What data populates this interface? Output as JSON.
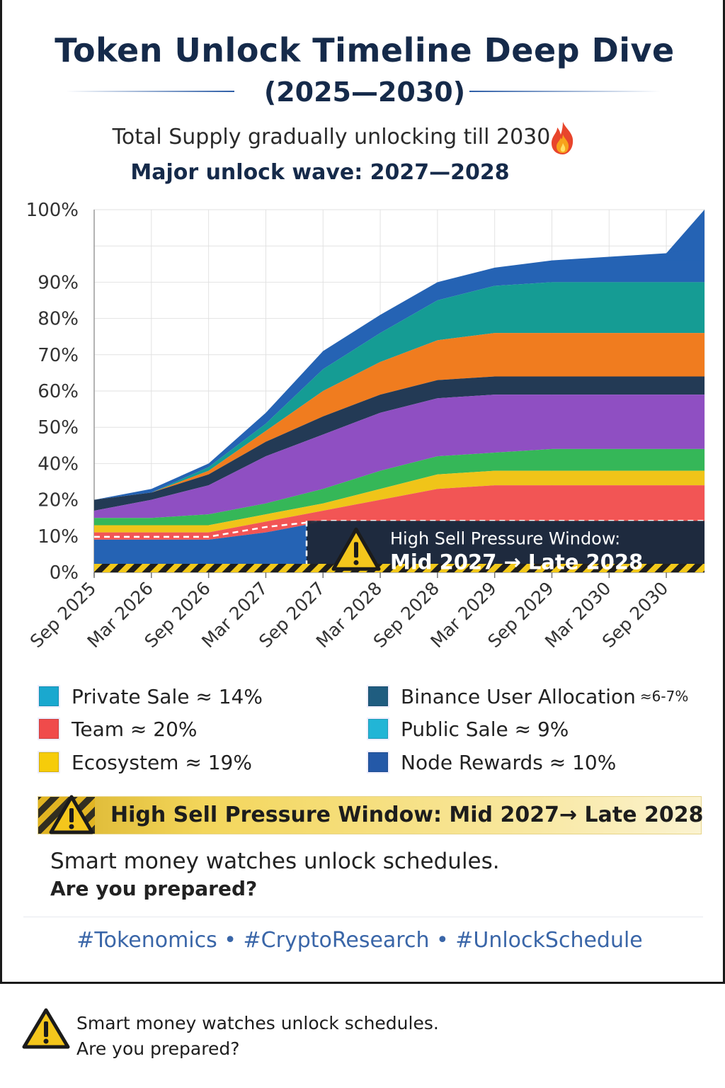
{
  "header": {
    "title": "Token Unlock Timeline Deep Dive",
    "years": "(2025—2030)",
    "subtitle": "Total Supply gradually unlocking till 2030",
    "subtitle_icon": "fire-icon",
    "wave": "Major unlock wave: 2027—2028"
  },
  "chart_data": {
    "type": "area",
    "stacked": true,
    "x": [
      "Sep 2025",
      "Mar 2026",
      "Sep 2026",
      "Mar 2027",
      "Sep 2027",
      "Mar 2028",
      "Sep 2028",
      "Mar 2029",
      "Sep 2029",
      "Mar 2030",
      "Sep 2030"
    ],
    "x_ticks": [
      "Sep 2025",
      "Mar 2026",
      "Sep 2026",
      "Mar 2027",
      "Sep 2027",
      "Mar 2028",
      "Sep 2028",
      "Mar 2029",
      "Sep 2029",
      "Mar 2030",
      "Sep 2030"
    ],
    "y_ticks": [
      "0%",
      "10%",
      "20%",
      "40%",
      "50%",
      "60%",
      "70%",
      "80%",
      "90%",
      "100%"
    ],
    "ylim": [
      0,
      100
    ],
    "grid": true,
    "layer_tops_sampled": {
      "t": [
        "Sep 2025",
        "Mar 2026",
        "Sep 2026",
        "Mar 2027",
        "Sep 2027",
        "Mar 2028",
        "Sep 2028",
        "Mar 2029",
        "Sep 2029",
        "Mar 2030",
        "Sep 2030",
        "Jan 2031"
      ],
      "layers": [
        {
          "color": "#2563b4",
          "tops": [
            9,
            9,
            9,
            11,
            14,
            14,
            14,
            14,
            14,
            14,
            14,
            14
          ]
        },
        {
          "color": "#f25555",
          "tops": [
            11,
            11,
            11,
            14,
            17,
            20,
            23,
            24,
            24,
            24,
            24,
            24
          ]
        },
        {
          "color": "#f0c419",
          "tops": [
            13,
            13,
            13,
            16,
            19,
            23,
            27,
            28,
            28,
            28,
            28,
            28
          ]
        },
        {
          "color": "#35b758",
          "tops": [
            15,
            15,
            16,
            19,
            23,
            28,
            32,
            33,
            34,
            34,
            34,
            34
          ]
        },
        {
          "color": "#8f4fc2",
          "tops": [
            17,
            20,
            24,
            32,
            38,
            44,
            48,
            49,
            49,
            49,
            49,
            49
          ]
        },
        {
          "color": "#233a55",
          "tops": [
            20,
            22,
            27,
            36,
            43,
            49,
            53,
            54,
            54,
            54,
            54,
            54
          ]
        },
        {
          "color": "#f07c1f",
          "tops": [
            20,
            22,
            28,
            39,
            50,
            58,
            64,
            66,
            66,
            66,
            66,
            66
          ]
        },
        {
          "color": "#159c94",
          "tops": [
            20,
            22,
            29,
            41,
            56,
            66,
            75,
            79,
            80,
            80,
            80,
            80
          ]
        },
        {
          "color": "#2563b4",
          "tops": [
            20,
            23,
            30,
            44,
            61,
            71,
            80,
            84,
            86,
            87,
            88,
            100
          ]
        }
      ]
    },
    "annotation": {
      "line1": "High Sell Pressure Window:",
      "line2": "Mid 2027 → Late 2028",
      "icon": "warning-icon"
    }
  },
  "legend": [
    {
      "label": "Private Sale ≈ 14%",
      "color": "#1aa8cf",
      "suffix": ""
    },
    {
      "label": "Binance User Allocation",
      "color": "#1f5d80",
      "suffix": "≈6-7%"
    },
    {
      "label": "Team ≈ 20%",
      "color": "#f04b4b",
      "suffix": ""
    },
    {
      "label": "Public Sale ≈ 9%",
      "color": "#22b5d6",
      "suffix": ""
    },
    {
      "label": "Ecosystem ≈ 19%",
      "color": "#f6cc0a",
      "suffix": ""
    },
    {
      "label": "Node Rewards ≈ 10%",
      "color": "#2459a8",
      "suffix": ""
    }
  ],
  "banner": {
    "text": "High Sell Pressure Window: Mid 2027→ Late 2028",
    "icon": "warning-icon"
  },
  "cta": {
    "line1": "Smart money watches unlock schedules.",
    "line2": "Are you prepared?"
  },
  "hashtags": "#Tokenomics • #CryptoResearch • #UnlockSchedule",
  "footer": {
    "line1": "Smart money watches unlock schedules.",
    "line2": "Are you prepared?",
    "icon": "warning-icon"
  }
}
